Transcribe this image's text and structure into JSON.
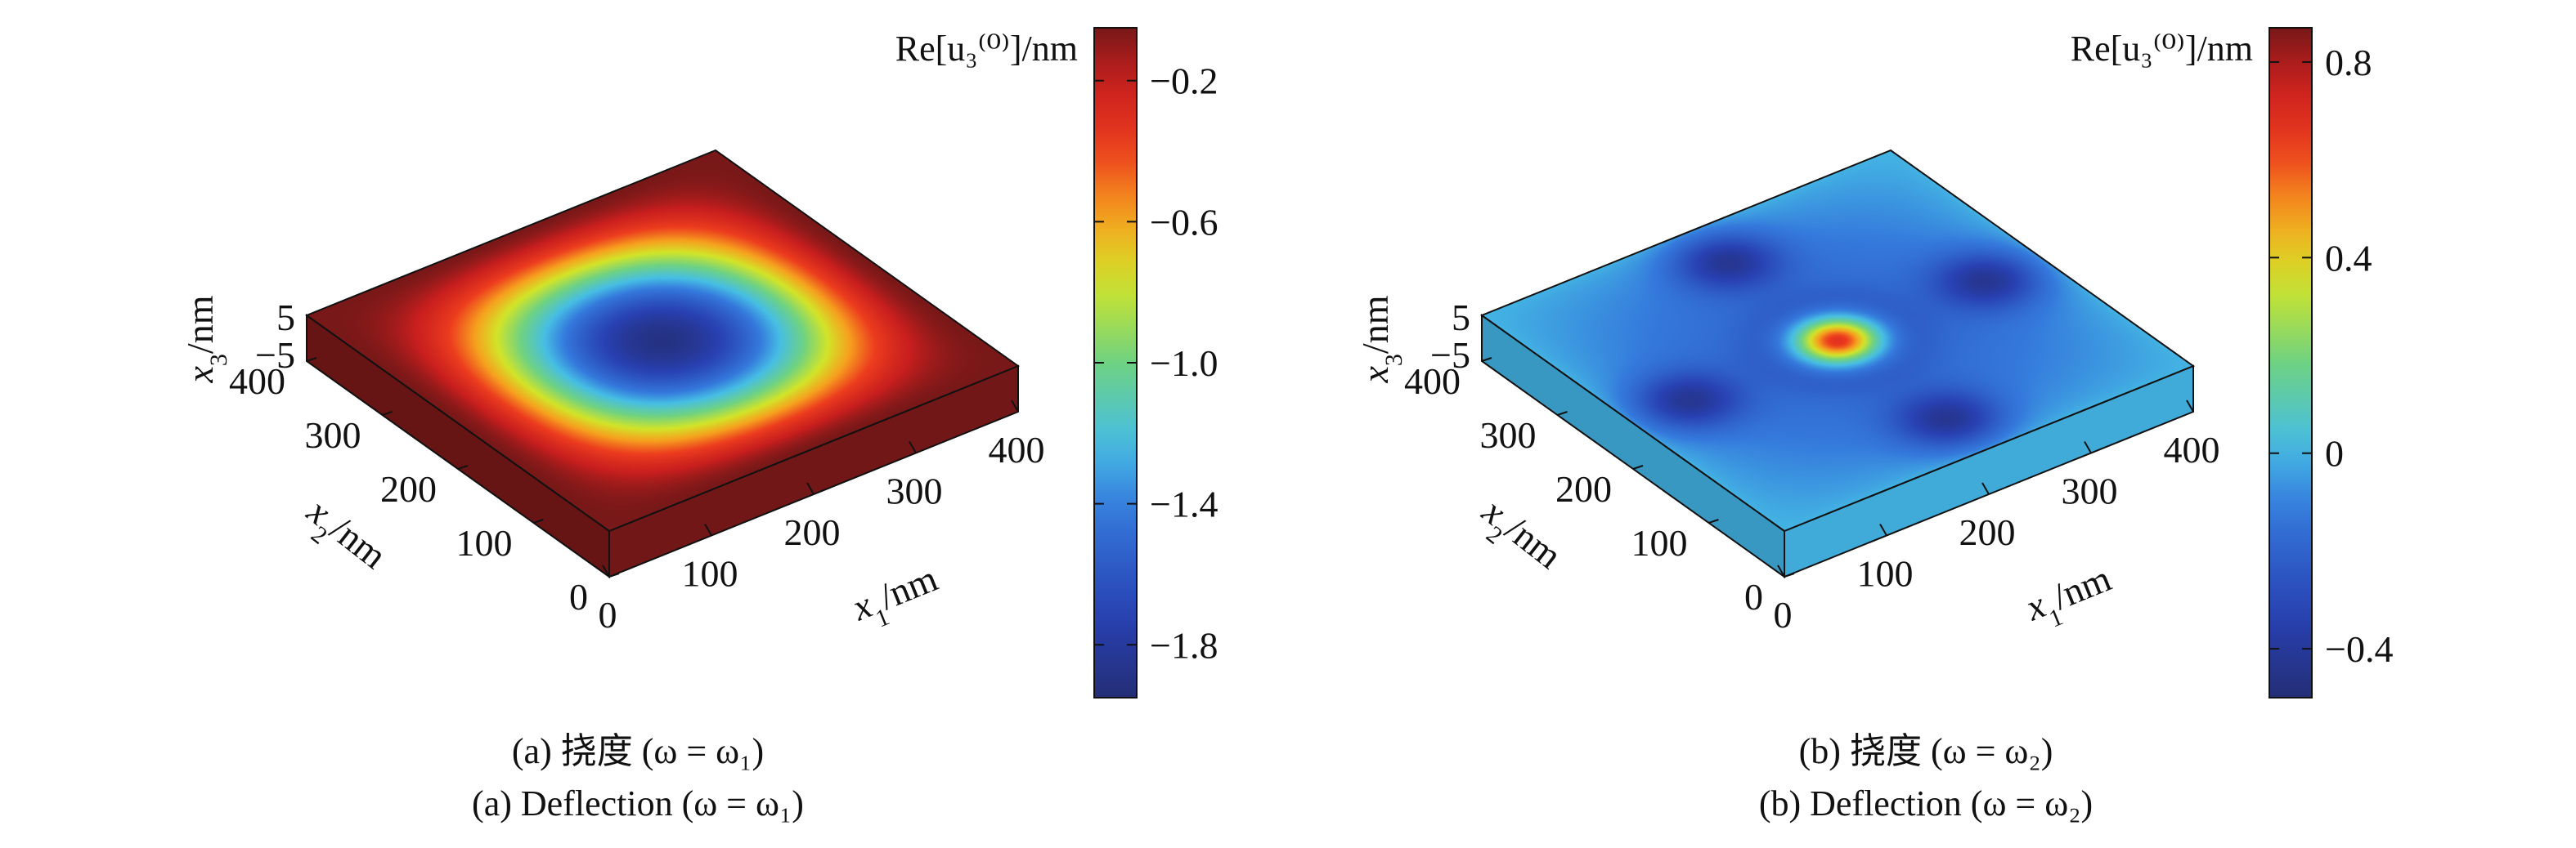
{
  "chart_data": [
    {
      "type": "surface3d",
      "title": "",
      "caption_cn": "(a) 挠度 (ω = ω₁)",
      "caption_en": "(a) Deflection (ω = ω₁)",
      "caption_prefix": "(a)",
      "caption_word_cn": "挠度",
      "caption_word_en": "Deflection",
      "omega_sub": "1",
      "xlabel": "x₁/nm",
      "ylabel": "x₂/nm",
      "zlabel": "x₃/nm",
      "x_ticks": [
        "0",
        "100",
        "200",
        "300",
        "400"
      ],
      "y_ticks": [
        "0",
        "100",
        "200",
        "300",
        "400"
      ],
      "z_ticks": [
        "5",
        "−5"
      ],
      "xlim": [
        0,
        400
      ],
      "ylim": [
        0,
        400
      ],
      "zlim": [
        -5,
        5
      ],
      "colorbar": {
        "label": "Re[u₃⁽⁰⁾]/nm",
        "range": [
          -1.95,
          -0.05
        ],
        "ticks": [
          -0.2,
          -0.6,
          -1.0,
          -1.4,
          -1.8
        ],
        "tick_labels": [
          "−0.2",
          "−0.6",
          "−1.0",
          "−1.4",
          "−1.8"
        ],
        "colormap": "jet"
      },
      "field": {
        "mode": "mode1",
        "center_value": -1.9,
        "edge_value": -0.05,
        "side_value": -0.05
      }
    },
    {
      "type": "surface3d",
      "title": "",
      "caption_cn": "(b) 挠度 (ω = ω₂)",
      "caption_en": "(b) Deflection (ω = ω₂)",
      "caption_prefix": "(b)",
      "caption_word_cn": "挠度",
      "caption_word_en": "Deflection",
      "omega_sub": "2",
      "xlabel": "x₁/nm",
      "ylabel": "x₂/nm",
      "zlabel": "x₃/nm",
      "x_ticks": [
        "0",
        "100",
        "200",
        "300",
        "400"
      ],
      "y_ticks": [
        "0",
        "100",
        "200",
        "300",
        "400"
      ],
      "z_ticks": [
        "5",
        "−5"
      ],
      "xlim": [
        0,
        400
      ],
      "ylim": [
        0,
        400
      ],
      "zlim": [
        -5,
        5
      ],
      "colorbar": {
        "label": "Re[u₃⁽⁰⁾]/nm",
        "range": [
          -0.5,
          0.87
        ],
        "ticks": [
          0.8,
          0.4,
          0,
          -0.4
        ],
        "tick_labels": [
          "0.8",
          "0.4",
          "0",
          "−0.4"
        ],
        "colormap": "jet"
      },
      "field": {
        "mode": "mode2",
        "center_value": 0.85,
        "edge_value": 0.0,
        "side_value": 0.0
      }
    }
  ]
}
